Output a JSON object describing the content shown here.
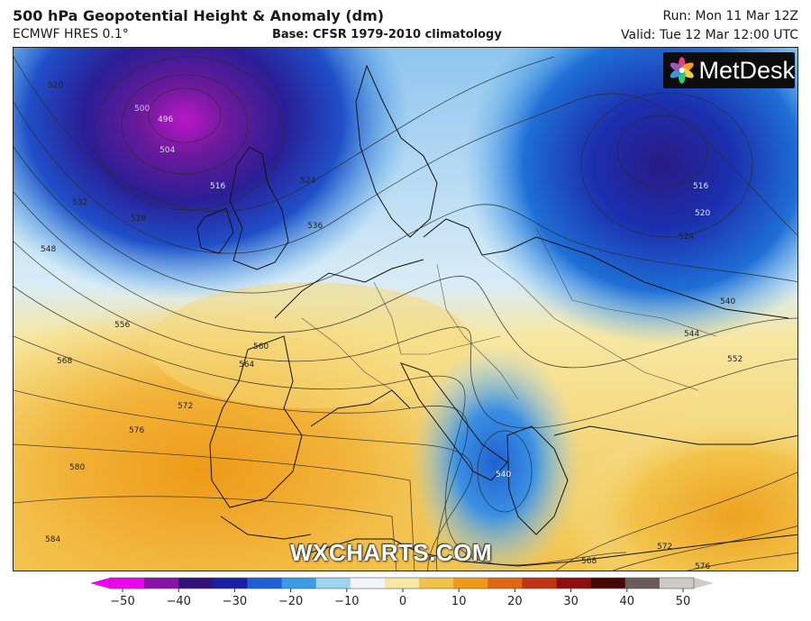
{
  "header": {
    "title": "500 hPa Geopotential Height & Anomaly (dm)",
    "model": "ECMWF HRES 0.1°",
    "base": "Base: CFSR 1979-2010 climatology",
    "run": "Run: Mon 11 Mar 12Z",
    "valid": "Valid: Tue 12 Mar 12:00 UTC"
  },
  "branding": {
    "logo_text": "MetDesk",
    "watermark": "WXCHARTS.COM"
  },
  "contour_labels": {
    "west": [
      "520",
      "532",
      "528",
      "548",
      "556",
      "568",
      "572",
      "576",
      "580",
      "584"
    ],
    "low_center": [
      "496",
      "500",
      "504",
      "516",
      "524",
      "536"
    ],
    "east": [
      "516",
      "520",
      "524",
      "540",
      "544",
      "552"
    ],
    "south": [
      "540",
      "560",
      "564",
      "568",
      "572",
      "576"
    ]
  },
  "colorbar": {
    "ticks": [
      "−50",
      "−40",
      "−30",
      "−20",
      "−10",
      "0",
      "10",
      "20",
      "30",
      "40",
      "50"
    ],
    "colors": [
      "#f000f0",
      "#8a12a8",
      "#30127a",
      "#1b1fa8",
      "#1f5fd6",
      "#3a9be6",
      "#9fd3f2",
      "#f2f6fa",
      "#f7e7a2",
      "#f2c34a",
      "#ee9a18",
      "#e06616",
      "#c03212",
      "#8f0f0f",
      "#4a0606",
      "#6b5a5a",
      "#cfc9c9"
    ]
  }
}
